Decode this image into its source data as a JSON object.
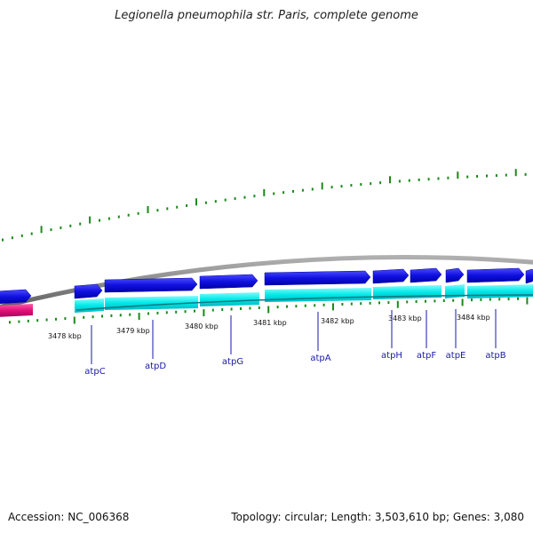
{
  "title": "Legionella pneumophila str. Paris, complete genome",
  "footer": {
    "accession": "Accession: NC_006368",
    "summary": "Topology: circular; Length: 3,503,610 bp; Genes: 3,080"
  },
  "colors": {
    "backbone": "#8a8a8a",
    "cds_forward": "#1010e0",
    "cds_reverse": "#e0107a",
    "gc_content": "#00e8e8",
    "gc_skew": "#1a8a1a",
    "gene_label": "#1a1aa8"
  },
  "kbp_ticks": [
    "3478 kbp",
    "3479 kbp",
    "3480 kbp",
    "3481 kbp",
    "3482 kbp",
    "3483 kbp",
    "3484 kbp"
  ],
  "genes": [
    "atpC",
    "atpD",
    "atpG",
    "atpA",
    "atpH",
    "atpF",
    "atpE",
    "atpB"
  ]
}
